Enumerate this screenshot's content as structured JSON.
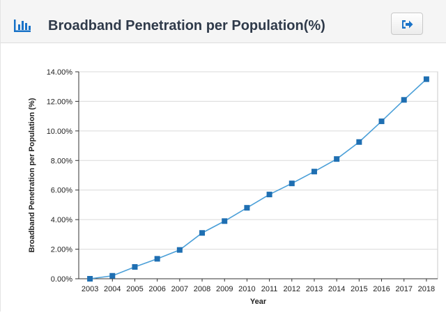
{
  "header": {
    "title": "Broadband Penetration per Population(%)",
    "icon": "bar-chart-icon",
    "export_icon": "export-icon"
  },
  "colors": {
    "line": "#4a9fd8",
    "marker": "#1f6fb2",
    "grid": "#d9d9d9",
    "axis": "#333333",
    "header_bg": "#f5f5f5",
    "title": "#2f3a4a",
    "icon": "#1a73c8"
  },
  "chart_data": {
    "type": "line",
    "title": "",
    "xlabel": "Year",
    "ylabel": "Broadband Penetration per Population (%)",
    "ylim": [
      0,
      14
    ],
    "yticks": [
      "0.00%",
      "2.00%",
      "4.00%",
      "6.00%",
      "8.00%",
      "10.00%",
      "12.00%",
      "14.00%"
    ],
    "categories": [
      "2003",
      "2004",
      "2005",
      "2006",
      "2007",
      "2008",
      "2009",
      "2010",
      "2011",
      "2012",
      "2013",
      "2014",
      "2015",
      "2016",
      "2017",
      "2018"
    ],
    "grid": true,
    "legend": "none",
    "series": [
      {
        "values": [
          0.0,
          0.2,
          0.8,
          1.35,
          1.95,
          3.1,
          3.9,
          4.8,
          5.7,
          6.45,
          7.25,
          8.1,
          9.25,
          10.65,
          12.1,
          13.5
        ]
      }
    ]
  }
}
